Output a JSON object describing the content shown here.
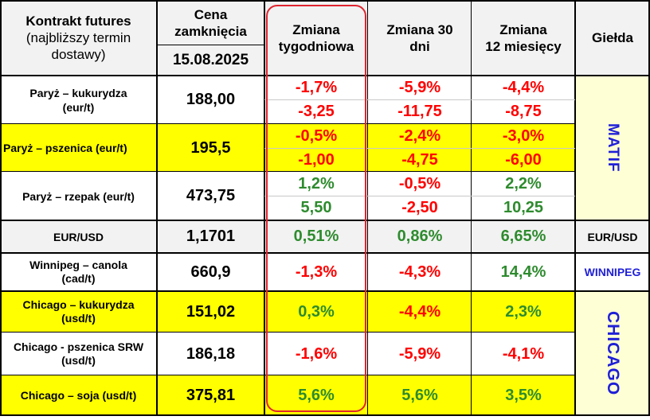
{
  "header": {
    "contract_line1": "Kontrakt futures",
    "contract_line2": "(najbliższy termin",
    "contract_line3": "dostawy)",
    "close_line1": "Cena",
    "close_line2": "zamknięcia",
    "close_date": "15.08.2025",
    "weekly_line1": "Zmiana",
    "weekly_line2": "tygodniowa",
    "d30_line1": "Zmiana 30",
    "d30_line2": "dni",
    "m12_line1": "Zmiana",
    "m12_line2": "12 miesięcy",
    "exchange": "Giełda"
  },
  "rows": [
    {
      "name_line1": "Paryż – kukurydza",
      "name_line2": "(eur/t)",
      "price": "188,00",
      "weekly_pct": "-1,7%",
      "weekly_abs": "-3,25",
      "d30_pct": "-5,9%",
      "d30_abs": "-11,75",
      "m12_pct": "-4,4%",
      "m12_abs": "-8,75"
    },
    {
      "name_line1": "Paryż – pszenica (eur/t)",
      "price": "195,5",
      "weekly_pct": "-0,5%",
      "weekly_abs": "-1,00",
      "d30_pct": "-2,4%",
      "d30_abs": "-4,75",
      "m12_pct": "-3,0%",
      "m12_abs": "-6,00"
    },
    {
      "name_line1": "Paryż – rzepak (eur/t)",
      "price": "473,75",
      "weekly_pct": "1,2%",
      "weekly_abs": "5,50",
      "d30_pct": "-0,5%",
      "d30_abs": "-2,50",
      "m12_pct": "2,2%",
      "m12_abs": "10,25"
    },
    {
      "name_line1": "EUR/USD",
      "price": "1,1701",
      "weekly": "0,51%",
      "d30": "0,86%",
      "m12": "6,65%",
      "exchange": "EUR/USD"
    },
    {
      "name_line1": "Winnipeg – canola",
      "name_line2": "(cad/t)",
      "price": "660,9",
      "weekly": "-1,3%",
      "d30": "-4,3%",
      "m12": "14,4%",
      "exchange": "WINNIPEG"
    },
    {
      "name_line1": "Chicago – kukurydza",
      "name_line2": "(usd/t)",
      "price": "151,02",
      "weekly": "0,3%",
      "d30": "-4,4%",
      "m12": "2,3%"
    },
    {
      "name_line1": "Chicago - pszenica SRW",
      "name_line2": "(usd/t)",
      "price": "186,18",
      "weekly": "-1,6%",
      "d30": "-5,9%",
      "m12": "-4,1%"
    },
    {
      "name_line1": "Chicago – soja (usd/t)",
      "price": "375,81",
      "weekly": "5,6%",
      "d30": "5,6%",
      "m12": "3,5%"
    }
  ],
  "exchanges": {
    "matif": "MATIF",
    "chicago": "CHICAGO"
  },
  "colors": {
    "negative": "#ff0000",
    "positive": "#2e8b2e",
    "highlight_yellow": "#ffff00",
    "header_gray": "#f2f2f2",
    "exchange_blue": "#1f1fd8",
    "weekly_frame": "#e0242e"
  }
}
